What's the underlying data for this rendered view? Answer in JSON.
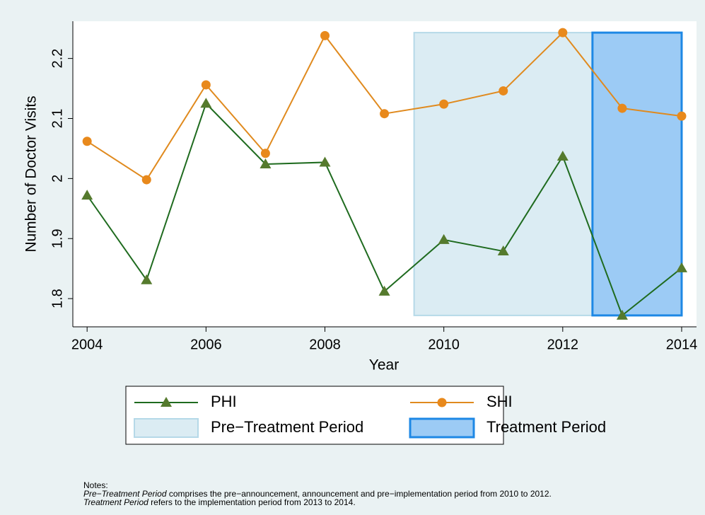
{
  "chart_data": {
    "type": "line",
    "x_label": "Year",
    "y_label": "Number of Doctor Visits",
    "x": [
      2004,
      2005,
      2006,
      2007,
      2008,
      2009,
      2010,
      2011,
      2012,
      2013,
      2014
    ],
    "series": [
      {
        "name": "PHI",
        "color": "#1f6b1f",
        "marker_color": "#557a2d",
        "marker": "triangle",
        "values": [
          1.972,
          1.831,
          2.125,
          2.024,
          2.027,
          1.812,
          1.898,
          1.879,
          2.037,
          1.772,
          1.851
        ]
      },
      {
        "name": "SHI",
        "color": "#e08a1e",
        "marker_color": "#e8891c",
        "marker": "circle",
        "values": [
          2.062,
          1.998,
          2.156,
          2.042,
          2.238,
          2.108,
          2.124,
          2.146,
          2.243,
          2.117,
          2.104
        ]
      }
    ],
    "regions": [
      {
        "name": "Pre−Treatment Period",
        "x": [
          2009.5,
          2012.5
        ],
        "y": [
          1.772,
          2.243
        ],
        "color": "#dbecf3",
        "edge_color": "#b5d9e8"
      },
      {
        "name": "Treatment Period",
        "x": [
          2012.5,
          2014
        ],
        "y": [
          1.772,
          2.243
        ],
        "color": "#9ccbf5",
        "edge_color": "#1e88e5"
      }
    ],
    "xlim": [
      2003.76,
      2014.25
    ],
    "ylim": [
      1.753,
      2.262
    ],
    "xticks": [
      2004,
      2006,
      2008,
      2010,
      2012,
      2014
    ],
    "yticks": [
      1.8,
      1.9,
      2,
      2.1,
      2.2
    ],
    "notes_title": "Notes:",
    "notes": [
      {
        "italic": "Pre−Treatment Period",
        "text": " comprises the pre−announcement, announcement and pre−implementation period from 2010 to 2012."
      },
      {
        "italic": "Treatment Period",
        "text": " refers to the implementation period from 2013 to 2014."
      }
    ]
  }
}
